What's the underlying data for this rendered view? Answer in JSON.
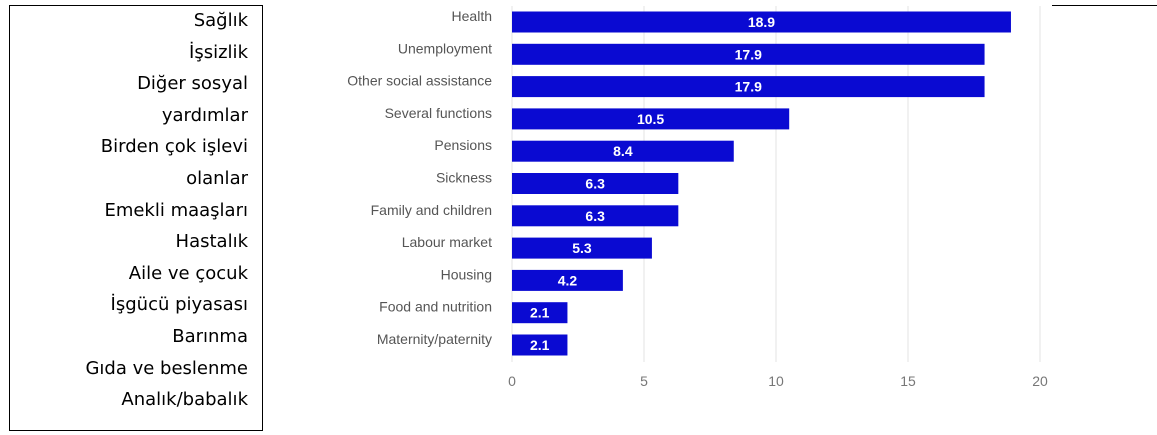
{
  "turkish_labels": [
    "Sağlık",
    "İşsizlik",
    "Diğer sosyal",
    "yardımlar",
    "Birden çok işlevi",
    "olanlar",
    "Emekli maaşları",
    "Hastalık",
    "Aile ve çocuk",
    "İşgücü piyasası",
    "Barınma",
    "Gıda ve beslenme",
    "Analık/babalık"
  ],
  "colors": {
    "bar": "#0a0ad2",
    "grid": "#e3e3e3",
    "axis_text": "#777777",
    "category_text": "#555555"
  },
  "chart_data": {
    "type": "bar",
    "orientation": "horizontal",
    "categories": [
      "Health",
      "Unemployment",
      "Other social assistance",
      "Several functions",
      "Pensions",
      "Sickness",
      "Family and children",
      "Labour market",
      "Housing",
      "Food and nutrition",
      "Maternity/paternity"
    ],
    "values": [
      18.9,
      17.9,
      17.9,
      10.5,
      8.4,
      6.3,
      6.3,
      5.3,
      4.2,
      2.1,
      2.1
    ],
    "value_labels": [
      "18.9",
      "17.9",
      "17.9",
      "10.5",
      "8.4",
      "6.3",
      "6.3",
      "5.3",
      "4.2",
      "2.1",
      "2.1"
    ],
    "xticks": [
      "0",
      "5",
      "10",
      "15",
      "20"
    ],
    "xlim": [
      0,
      20
    ],
    "grid": true,
    "title": "",
    "xlabel": "",
    "ylabel": ""
  }
}
